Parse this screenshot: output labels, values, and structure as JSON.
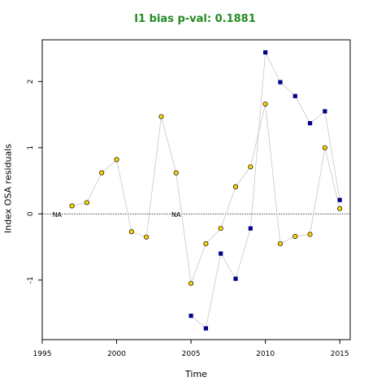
{
  "chart_data": {
    "type": "scatter",
    "title": "I1 bias p-val: 0.1881",
    "xlabel": "Time",
    "ylabel": "Index OSA residuals",
    "xlim": [
      1995,
      2015.7
    ],
    "ylim": [
      -1.9,
      2.63
    ],
    "xticks": [
      1995,
      2000,
      2005,
      2010,
      2015
    ],
    "yticks": [
      -1,
      0,
      1,
      2
    ],
    "reference_line": 0,
    "grid": false,
    "series": [
      {
        "marker": "circle",
        "color": "#FFD700",
        "x": [
          1996,
          1997,
          1998,
          1999,
          2000,
          2001,
          2002,
          2003,
          2004,
          2005,
          2006,
          2007,
          2008,
          2009,
          2010,
          2011,
          2012,
          2013,
          2014,
          2015
        ],
        "y": [
          null,
          0.12,
          0.17,
          0.62,
          0.82,
          -0.27,
          -0.35,
          1.47,
          0.62,
          -1.05,
          -0.45,
          -0.22,
          0.41,
          0.71,
          1.66,
          -0.45,
          -0.34,
          -0.31,
          1.0,
          0.08
        ]
      },
      {
        "marker": "square",
        "color": "#00008B",
        "x": [
          2005,
          2006,
          2007,
          2008,
          2009,
          2010,
          2011,
          2012,
          2013,
          2014,
          2015
        ],
        "y": [
          -1.54,
          -1.73,
          -0.6,
          -0.98,
          -0.22,
          2.44,
          1.99,
          1.78,
          1.37,
          1.55,
          0.21
        ]
      }
    ],
    "na_labels": [
      {
        "x": 1996,
        "text": "NA"
      },
      {
        "x": 2004,
        "text": "NA"
      }
    ]
  }
}
